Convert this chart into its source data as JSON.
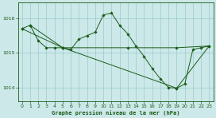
{
  "title": "Graphe pression niveau de la mer (hPa)",
  "background_color": "#cce8e8",
  "line_color": "#1a5c1a",
  "grid_color": "#99cccc",
  "xlim": [
    -0.5,
    23.5
  ],
  "ylim": [
    1013.6,
    1016.45
  ],
  "yticks": [
    1014,
    1015,
    1016
  ],
  "xticks": [
    0,
    1,
    2,
    3,
    4,
    5,
    6,
    7,
    8,
    9,
    10,
    11,
    12,
    13,
    14,
    15,
    16,
    17,
    18,
    19,
    20,
    21,
    22,
    23
  ],
  "series1": {
    "x": [
      0,
      1,
      2,
      3,
      4,
      5,
      6,
      7,
      8,
      9,
      10,
      11,
      12,
      13,
      14,
      15,
      16,
      17,
      18,
      19,
      20,
      21,
      22,
      23
    ],
    "y": [
      1015.7,
      1015.8,
      1015.35,
      1015.15,
      1015.15,
      1015.15,
      1015.1,
      1015.4,
      1015.5,
      1015.6,
      1016.1,
      1016.15,
      1015.8,
      1015.55,
      1015.2,
      1014.9,
      1014.55,
      1014.25,
      1014.0,
      1013.98,
      1014.1,
      1015.1,
      1015.15,
      1015.2
    ]
  },
  "series2": {
    "x": [
      0,
      5,
      13,
      19,
      23
    ],
    "y": [
      1015.7,
      1015.15,
      1015.15,
      1015.15,
      1015.2
    ]
  },
  "series3": {
    "x": [
      1,
      5,
      19,
      23
    ],
    "y": [
      1015.8,
      1015.15,
      1013.98,
      1015.2
    ]
  }
}
